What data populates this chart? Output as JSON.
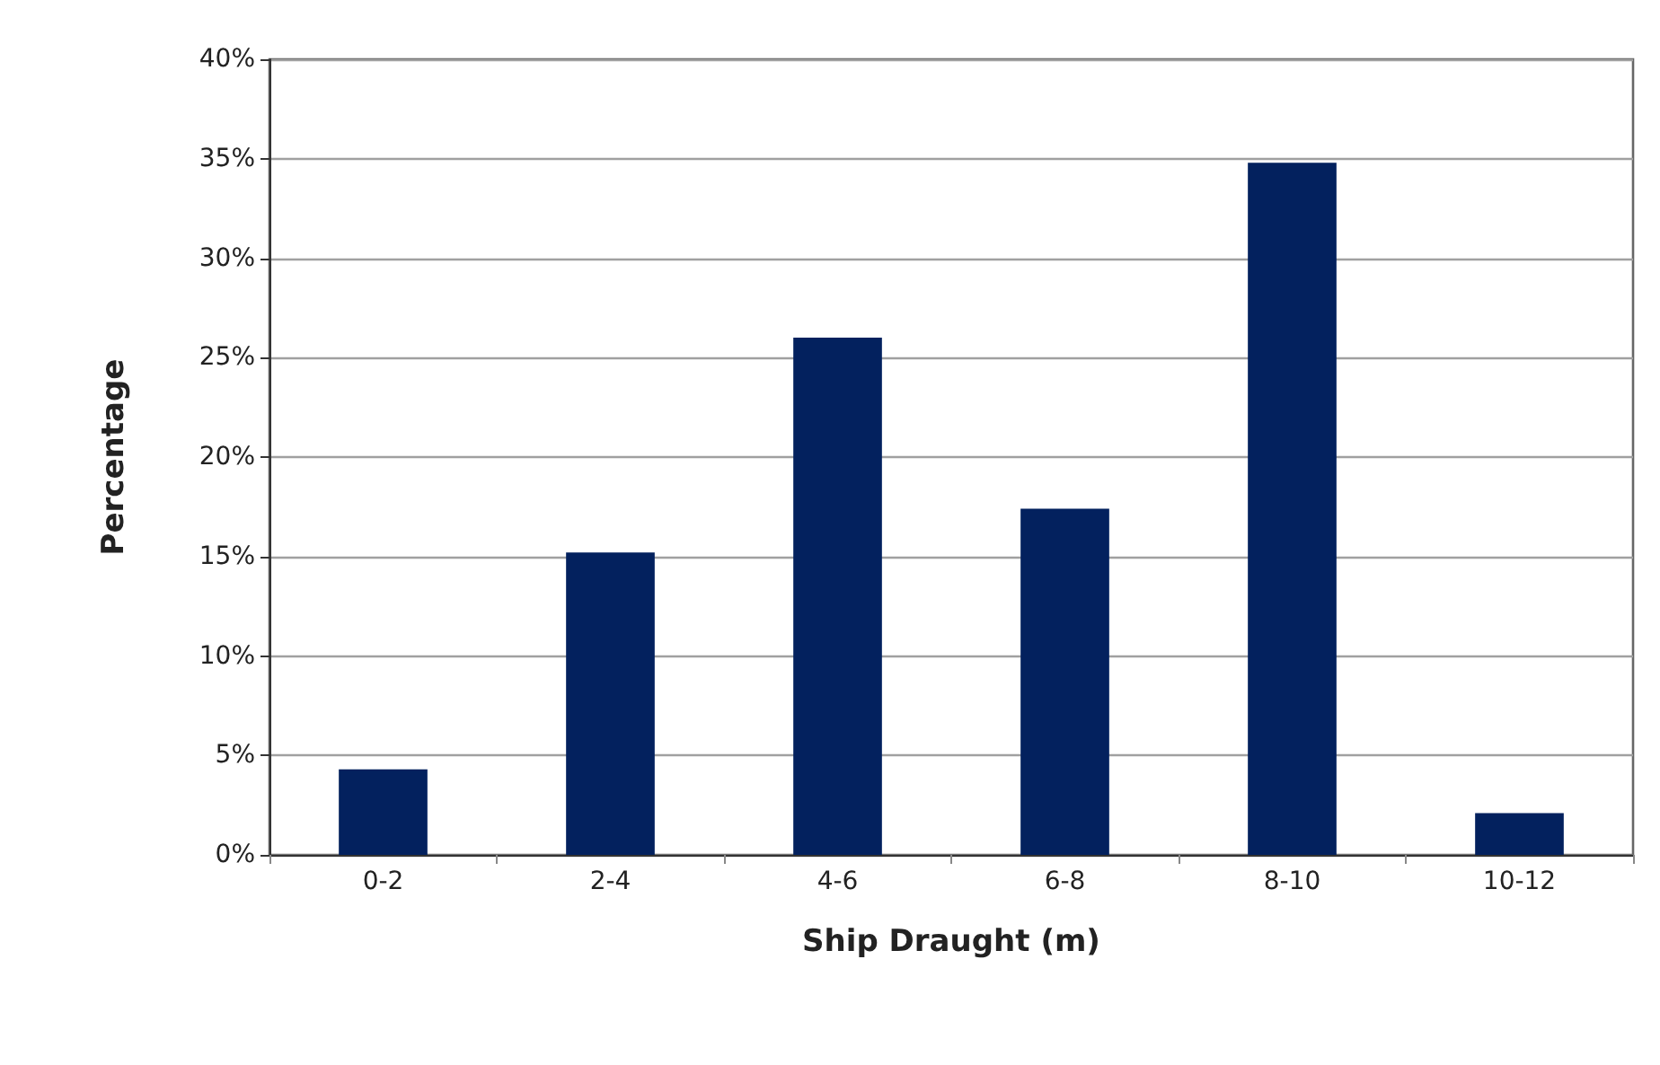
{
  "chart_data": {
    "type": "bar",
    "xlabel": "Ship Draught (m)",
    "ylabel": "Percentage",
    "categories": [
      "0-2",
      "2-4",
      "4-6",
      "6-8",
      "8-10",
      "10-12"
    ],
    "values": [
      4.3,
      15.2,
      26.0,
      17.4,
      34.8,
      2.1
    ],
    "color": "#03215e",
    "ylim": [
      0,
      40
    ],
    "yticks": [
      {
        "value": 0,
        "label": "0%"
      },
      {
        "value": 5,
        "label": "5%"
      },
      {
        "value": 10,
        "label": "10%"
      },
      {
        "value": 15,
        "label": "15%"
      },
      {
        "value": 20,
        "label": "20%"
      },
      {
        "value": 25,
        "label": "25%"
      },
      {
        "value": 30,
        "label": "30%"
      },
      {
        "value": 35,
        "label": "35%"
      },
      {
        "value": 40,
        "label": "40%"
      }
    ],
    "grid": "y"
  }
}
